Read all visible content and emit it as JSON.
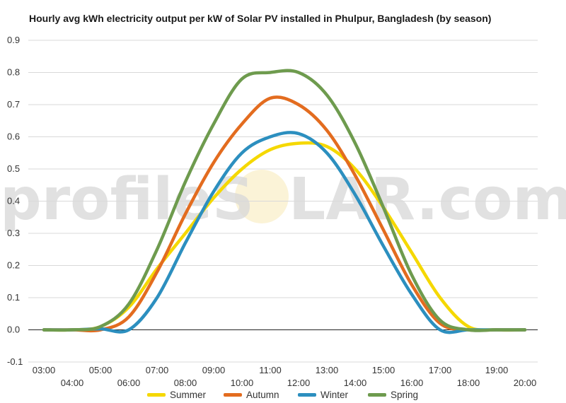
{
  "chart_data": {
    "type": "line",
    "title": "Hourly avg kWh electricity output per kW of Solar PV installed in Phulpur, Bangladesh (by season)",
    "xlabel": "",
    "ylabel": "",
    "categories": [
      "03:00",
      "04:00",
      "05:00",
      "06:00",
      "07:00",
      "08:00",
      "09:00",
      "10:00",
      "11:00",
      "12:00",
      "13:00",
      "14:00",
      "15:00",
      "16:00",
      "17:00",
      "18:00",
      "19:00",
      "20:00"
    ],
    "ylim": [
      -0.1,
      0.9
    ],
    "yticks": [
      "-0.1",
      "0.0",
      "0.1",
      "0.2",
      "0.3",
      "0.4",
      "0.5",
      "0.6",
      "0.7",
      "0.8",
      "0.9"
    ],
    "grid": true,
    "legend_position": "bottom",
    "series": [
      {
        "name": "Summer",
        "color": "#f5d800",
        "values": [
          0,
          0,
          0.01,
          0.07,
          0.19,
          0.3,
          0.41,
          0.5,
          0.56,
          0.58,
          0.57,
          0.5,
          0.38,
          0.24,
          0.1,
          0.01,
          0,
          0
        ]
      },
      {
        "name": "Autumn",
        "color": "#e36c1f",
        "values": [
          0,
          0,
          0,
          0.04,
          0.18,
          0.36,
          0.52,
          0.64,
          0.72,
          0.7,
          0.62,
          0.48,
          0.31,
          0.14,
          0.02,
          0,
          0,
          0
        ]
      },
      {
        "name": "Winter",
        "color": "#2c8fbf",
        "values": [
          0,
          0,
          0.003,
          0,
          0.1,
          0.27,
          0.43,
          0.55,
          0.6,
          0.61,
          0.55,
          0.42,
          0.26,
          0.11,
          0,
          0,
          0,
          0
        ]
      },
      {
        "name": "Spring",
        "color": "#6e9b4e",
        "values": [
          0,
          0,
          0.01,
          0.08,
          0.25,
          0.46,
          0.64,
          0.78,
          0.8,
          0.8,
          0.73,
          0.58,
          0.38,
          0.17,
          0.03,
          0,
          0,
          0
        ]
      }
    ]
  },
  "watermark": {
    "left": "profileS",
    "sun": "O",
    "right": "LAR.com"
  }
}
